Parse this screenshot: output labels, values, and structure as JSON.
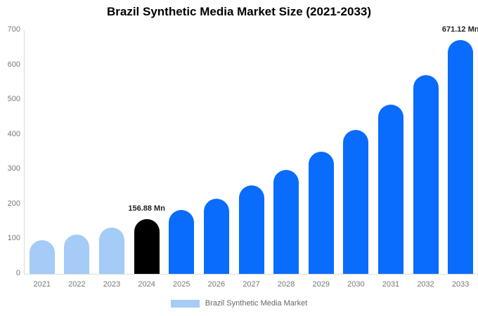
{
  "title": "Brazil Synthetic Media Market Size (2021-2033)",
  "chart_data": {
    "type": "bar",
    "title": "Brazil Synthetic Media Market Size (2021-2033)",
    "categories": [
      "2021",
      "2022",
      "2023",
      "2024",
      "2025",
      "2026",
      "2027",
      "2028",
      "2029",
      "2030",
      "2031",
      "2032",
      "2033"
    ],
    "values": [
      96.63,
      113.57,
      133.48,
      156.88,
      184.38,
      216.7,
      254.68,
      299.32,
      351.78,
      413.44,
      485.9,
      571.06,
      671.12
    ],
    "unit": "Mn",
    "labeled_points": [
      {
        "category": "2024",
        "label": "156.88 Mn"
      },
      {
        "category": "2033",
        "label": "671.12 Mn"
      }
    ],
    "xlabel": "",
    "ylabel": "",
    "ylim": [
      0,
      700
    ],
    "yticks": [
      0,
      100,
      200,
      300,
      400,
      500,
      600,
      700
    ],
    "grid": false,
    "legend": {
      "label": "Brazil Synthetic Media Market",
      "position": "bottom"
    },
    "bar_colors": [
      "#a5cbf7",
      "#a5cbf7",
      "#a5cbf7",
      "#000000",
      "#0a6cfc",
      "#0a6cfc",
      "#0a6cfc",
      "#0a6cfc",
      "#0a6cfc",
      "#0a6cfc",
      "#0a6cfc",
      "#0a6cfc",
      "#0a6cfc"
    ],
    "colors": {
      "historical_bar": "#a5cbf7",
      "highlight_bar": "#000000",
      "forecast_bar": "#0a6cfc",
      "axis_line": "#dcdcdc",
      "tick_text": "#777777",
      "value_label_text": "#222222",
      "legend_text": "#666666",
      "title_text": "#000000"
    }
  }
}
